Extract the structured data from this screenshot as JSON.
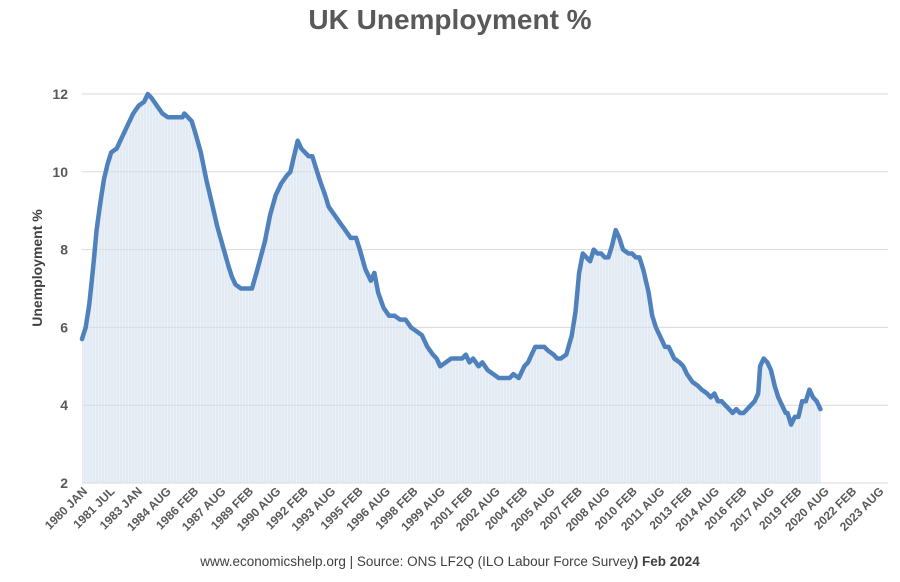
{
  "chart_data": {
    "type": "area",
    "title": "UK Unemployment %",
    "ylabel": "Unemployment %",
    "xlabel": "",
    "ylim": [
      2,
      12
    ],
    "yticks": [
      2,
      4,
      6,
      8,
      10,
      12
    ],
    "xlim": [
      1980.0,
      2024.1
    ],
    "grid": "horizontal",
    "series_color": "#4f81bd",
    "fill_color": "#dbe5f1",
    "x_tick_labels": [
      {
        "label": "1980 JAN",
        "t": 1980.0
      },
      {
        "label": "1981 JUL",
        "t": 1981.5
      },
      {
        "label": "1983 JAN",
        "t": 1983.0
      },
      {
        "label": "1984 AUG",
        "t": 1984.58
      },
      {
        "label": "1986 FEB",
        "t": 1986.08
      },
      {
        "label": "1987 AUG",
        "t": 1987.58
      },
      {
        "label": "1989 FEB",
        "t": 1989.08
      },
      {
        "label": "1990 AUG",
        "t": 1990.58
      },
      {
        "label": "1992 FEB",
        "t": 1992.08
      },
      {
        "label": "1993 AUG",
        "t": 1993.58
      },
      {
        "label": "1995 FEB",
        "t": 1995.08
      },
      {
        "label": "1996 AUG",
        "t": 1996.58
      },
      {
        "label": "1998 FEB",
        "t": 1998.08
      },
      {
        "label": "1999 AUG",
        "t": 1999.58
      },
      {
        "label": "2001 FEB",
        "t": 2001.08
      },
      {
        "label": "2002 AUG",
        "t": 2002.58
      },
      {
        "label": "2004 FEB",
        "t": 2004.08
      },
      {
        "label": "2005 AUG",
        "t": 2005.58
      },
      {
        "label": "2007 FEB",
        "t": 2007.08
      },
      {
        "label": "2008 AUG",
        "t": 2008.58
      },
      {
        "label": "2010 FEB",
        "t": 2010.08
      },
      {
        "label": "2011 AUG",
        "t": 2011.58
      },
      {
        "label": "2013 FEB",
        "t": 2013.08
      },
      {
        "label": "2014 AUG",
        "t": 2014.58
      },
      {
        "label": "2016 FEB",
        "t": 2016.08
      },
      {
        "label": "2017 AUG",
        "t": 2017.58
      },
      {
        "label": "2019 FEB",
        "t": 2019.08
      },
      {
        "label": "2020 AUG",
        "t": 2020.58
      },
      {
        "label": "2022 FEB",
        "t": 2022.08
      },
      {
        "label": "2023 AUG",
        "t": 2023.58
      }
    ],
    "series": [
      {
        "values": [
          [
            1980.0,
            5.7
          ],
          [
            1980.2,
            6.0
          ],
          [
            1980.4,
            6.6
          ],
          [
            1980.6,
            7.5
          ],
          [
            1980.8,
            8.5
          ],
          [
            1981.0,
            9.2
          ],
          [
            1981.2,
            9.8
          ],
          [
            1981.4,
            10.2
          ],
          [
            1981.6,
            10.5
          ],
          [
            1981.9,
            10.6
          ],
          [
            1982.2,
            10.9
          ],
          [
            1982.5,
            11.2
          ],
          [
            1982.8,
            11.5
          ],
          [
            1983.1,
            11.7
          ],
          [
            1983.4,
            11.8
          ],
          [
            1983.6,
            12.0
          ],
          [
            1983.8,
            11.9
          ],
          [
            1984.1,
            11.7
          ],
          [
            1984.4,
            11.5
          ],
          [
            1984.7,
            11.4
          ],
          [
            1985.0,
            11.4
          ],
          [
            1985.3,
            11.4
          ],
          [
            1985.5,
            11.4
          ],
          [
            1985.6,
            11.5
          ],
          [
            1985.8,
            11.4
          ],
          [
            1986.0,
            11.3
          ],
          [
            1986.2,
            11.0
          ],
          [
            1986.5,
            10.5
          ],
          [
            1986.8,
            9.8
          ],
          [
            1987.1,
            9.2
          ],
          [
            1987.4,
            8.6
          ],
          [
            1987.7,
            8.1
          ],
          [
            1988.0,
            7.6
          ],
          [
            1988.2,
            7.3
          ],
          [
            1988.4,
            7.1
          ],
          [
            1988.7,
            7.0
          ],
          [
            1989.0,
            7.0
          ],
          [
            1989.3,
            7.0
          ],
          [
            1989.6,
            7.5
          ],
          [
            1990.0,
            8.2
          ],
          [
            1990.3,
            8.9
          ],
          [
            1990.6,
            9.4
          ],
          [
            1990.9,
            9.7
          ],
          [
            1991.2,
            9.9
          ],
          [
            1991.4,
            10.0
          ],
          [
            1991.6,
            10.4
          ],
          [
            1991.8,
            10.8
          ],
          [
            1992.0,
            10.6
          ],
          [
            1992.2,
            10.5
          ],
          [
            1992.4,
            10.4
          ],
          [
            1992.6,
            10.4
          ],
          [
            1992.8,
            10.1
          ],
          [
            1993.0,
            9.8
          ],
          [
            1993.3,
            9.4
          ],
          [
            1993.5,
            9.1
          ],
          [
            1993.8,
            8.9
          ],
          [
            1994.1,
            8.7
          ],
          [
            1994.4,
            8.5
          ],
          [
            1994.7,
            8.3
          ],
          [
            1995.0,
            8.3
          ],
          [
            1995.2,
            8.0
          ],
          [
            1995.5,
            7.5
          ],
          [
            1995.8,
            7.2
          ],
          [
            1996.0,
            7.4
          ],
          [
            1996.2,
            6.9
          ],
          [
            1996.5,
            6.5
          ],
          [
            1996.8,
            6.3
          ],
          [
            1997.1,
            6.3
          ],
          [
            1997.4,
            6.2
          ],
          [
            1997.7,
            6.2
          ],
          [
            1998.0,
            6.0
          ],
          [
            1998.3,
            5.9
          ],
          [
            1998.6,
            5.8
          ],
          [
            1998.9,
            5.5
          ],
          [
            1999.2,
            5.3
          ],
          [
            1999.4,
            5.2
          ],
          [
            1999.6,
            5.0
          ],
          [
            1999.9,
            5.1
          ],
          [
            2000.2,
            5.2
          ],
          [
            2000.5,
            5.2
          ],
          [
            2000.8,
            5.2
          ],
          [
            2001.0,
            5.3
          ],
          [
            2001.2,
            5.1
          ],
          [
            2001.4,
            5.2
          ],
          [
            2001.7,
            5.0
          ],
          [
            2001.9,
            5.1
          ],
          [
            2002.2,
            4.9
          ],
          [
            2002.5,
            4.8
          ],
          [
            2002.8,
            4.7
          ],
          [
            2003.1,
            4.7
          ],
          [
            2003.4,
            4.7
          ],
          [
            2003.6,
            4.8
          ],
          [
            2003.9,
            4.7
          ],
          [
            2004.2,
            5.0
          ],
          [
            2004.4,
            5.1
          ],
          [
            2004.6,
            5.3
          ],
          [
            2004.8,
            5.5
          ],
          [
            2005.0,
            5.5
          ],
          [
            2005.3,
            5.5
          ],
          [
            2005.5,
            5.4
          ],
          [
            2005.8,
            5.3
          ],
          [
            2006.0,
            5.2
          ],
          [
            2006.2,
            5.2
          ],
          [
            2006.5,
            5.3
          ],
          [
            2006.8,
            5.8
          ],
          [
            2007.0,
            6.4
          ],
          [
            2007.2,
            7.4
          ],
          [
            2007.4,
            7.9
          ],
          [
            2007.6,
            7.8
          ],
          [
            2007.8,
            7.7
          ],
          [
            2008.0,
            8.0
          ],
          [
            2008.2,
            7.9
          ],
          [
            2008.4,
            7.9
          ],
          [
            2008.6,
            7.8
          ],
          [
            2008.8,
            7.8
          ],
          [
            2009.0,
            8.1
          ],
          [
            2009.2,
            8.5
          ],
          [
            2009.4,
            8.3
          ],
          [
            2009.6,
            8.0
          ],
          [
            2009.9,
            7.9
          ],
          [
            2010.1,
            7.9
          ],
          [
            2010.3,
            7.8
          ],
          [
            2010.5,
            7.8
          ],
          [
            2010.7,
            7.5
          ],
          [
            2011.0,
            6.9
          ],
          [
            2011.2,
            6.3
          ],
          [
            2011.4,
            6.0
          ],
          [
            2011.7,
            5.7
          ],
          [
            2011.9,
            5.5
          ],
          [
            2012.1,
            5.5
          ],
          [
            2012.4,
            5.2
          ],
          [
            2012.7,
            5.1
          ],
          [
            2012.9,
            5.0
          ],
          [
            2013.1,
            4.8
          ],
          [
            2013.4,
            4.6
          ],
          [
            2013.7,
            4.5
          ],
          [
            2013.9,
            4.4
          ],
          [
            2014.2,
            4.3
          ],
          [
            2014.4,
            4.2
          ],
          [
            2014.6,
            4.3
          ],
          [
            2014.8,
            4.1
          ],
          [
            2015.0,
            4.1
          ],
          [
            2015.2,
            4.0
          ],
          [
            2015.4,
            3.9
          ],
          [
            2015.6,
            3.8
          ],
          [
            2015.8,
            3.9
          ],
          [
            2016.0,
            3.8
          ],
          [
            2016.2,
            3.8
          ],
          [
            2016.4,
            3.9
          ],
          [
            2016.6,
            4.0
          ],
          [
            2016.8,
            4.1
          ],
          [
            2017.0,
            4.3
          ],
          [
            2017.1,
            5.0
          ],
          [
            2017.3,
            5.2
          ],
          [
            2017.5,
            5.1
          ],
          [
            2017.7,
            4.9
          ],
          [
            2017.9,
            4.5
          ],
          [
            2018.1,
            4.2
          ],
          [
            2018.3,
            4.0
          ],
          [
            2018.5,
            3.8
          ],
          [
            2018.6,
            3.8
          ],
          [
            2018.8,
            3.5
          ],
          [
            2019.0,
            3.7
          ],
          [
            2019.2,
            3.7
          ],
          [
            2019.4,
            4.1
          ],
          [
            2019.6,
            4.1
          ],
          [
            2019.8,
            4.4
          ],
          [
            2020.0,
            4.2
          ],
          [
            2020.2,
            4.1
          ],
          [
            2020.4,
            3.9
          ]
        ]
      }
    ]
  },
  "footer": {
    "text_main": "www.economicshelp.org | Source: ONS LF2Q (ILO Labour Force Survey",
    "text_bold": ") Feb 2024"
  }
}
